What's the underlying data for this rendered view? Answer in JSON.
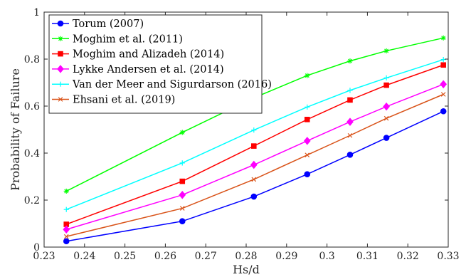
{
  "chart_data": {
    "type": "line",
    "xlabel": "Hs/d",
    "ylabel": "Probability of Failure",
    "xlim": [
      0.23,
      0.33
    ],
    "ylim": [
      0,
      1
    ],
    "x_ticks": [
      "0.23",
      "0.24",
      "0.25",
      "0.26",
      "0.27",
      "0.28",
      "0.29",
      "0.3",
      "0.31",
      "0.32",
      "0.33"
    ],
    "y_ticks": [
      "0",
      "0.2",
      "0.4",
      "0.6",
      "0.8",
      "1"
    ],
    "grid": false,
    "legend_position": "top-left",
    "x": [
      0.2355,
      0.2642,
      0.2819,
      0.2951,
      0.3057,
      0.3147,
      0.3288
    ],
    "series": [
      {
        "name": "Torum (2007)",
        "color": "#0000ff",
        "marker": "circle",
        "values": [
          0.025,
          0.11,
          0.215,
          0.31,
          0.393,
          0.465,
          0.578
        ]
      },
      {
        "name": "Moghim et al. (2011)",
        "color": "#00ff00",
        "marker": "star",
        "values": [
          0.238,
          0.488,
          0.635,
          0.73,
          0.792,
          0.835,
          0.89
        ]
      },
      {
        "name": "Moghim and Alizadeh (2014)",
        "color": "#ff0000",
        "marker": "square",
        "values": [
          0.097,
          0.28,
          0.43,
          0.543,
          0.626,
          0.689,
          0.775
        ]
      },
      {
        "name": "Lykke Andersen et al. (2014)",
        "color": "#ff00ff",
        "marker": "diamond",
        "values": [
          0.075,
          0.222,
          0.35,
          0.452,
          0.533,
          0.598,
          0.693
        ]
      },
      {
        "name": "Van der Meer and Sigurdarson (2016)",
        "color": "#00ffff",
        "marker": "plus",
        "values": [
          0.16,
          0.358,
          0.498,
          0.596,
          0.667,
          0.72,
          0.798
        ]
      },
      {
        "name": "Ehsani et al. (2019)",
        "color": "#d95319",
        "marker": "x",
        "values": [
          0.045,
          0.165,
          0.288,
          0.392,
          0.475,
          0.548,
          0.65
        ]
      }
    ]
  }
}
